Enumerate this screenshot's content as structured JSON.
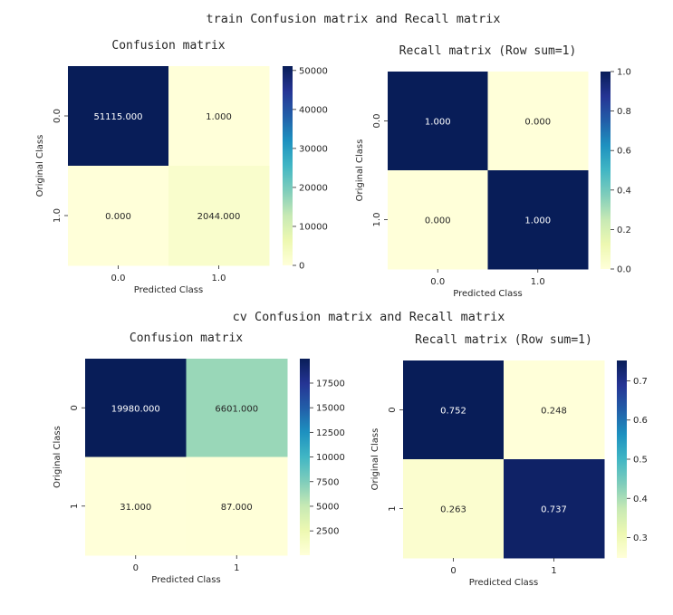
{
  "figure_titles": [
    "train Confusion matrix and Recall matrix",
    "cv Confusion matrix and Recall matrix"
  ],
  "chart_data": [
    {
      "type": "heatmap",
      "group": "train",
      "title": "Confusion matrix",
      "xlabel": "Predicted Class",
      "ylabel": "Original Class",
      "x_ticklabels": [
        "0.0",
        "1.0"
      ],
      "y_ticklabels": [
        "0.0",
        "1.0"
      ],
      "values": [
        [
          51115.0,
          1.0
        ],
        [
          0.0,
          2044.0
        ]
      ],
      "annotations": [
        [
          "51115.000",
          "1.000"
        ],
        [
          "0.000",
          "2044.000"
        ]
      ],
      "colormap": "YlGnBu",
      "colorbar": {
        "range": [
          0,
          51115
        ],
        "ticks": [
          0,
          10000,
          20000,
          30000,
          40000,
          50000
        ],
        "ticklabels": [
          "0",
          "10000",
          "20000",
          "30000",
          "40000",
          "50000"
        ]
      }
    },
    {
      "type": "heatmap",
      "group": "train",
      "title": "Recall matrix (Row sum=1)",
      "xlabel": "Predicted Class",
      "ylabel": "Original Class",
      "x_ticklabels": [
        "0.0",
        "1.0"
      ],
      "y_ticklabels": [
        "0.0",
        "1.0"
      ],
      "values": [
        [
          1.0,
          0.0
        ],
        [
          0.0,
          1.0
        ]
      ],
      "annotations": [
        [
          "1.000",
          "0.000"
        ],
        [
          "0.000",
          "1.000"
        ]
      ],
      "colormap": "YlGnBu",
      "colorbar": {
        "range": [
          0,
          1
        ],
        "ticks": [
          0,
          0.2,
          0.4,
          0.6,
          0.8,
          1.0
        ],
        "ticklabels": [
          "0.0",
          "0.2",
          "0.4",
          "0.6",
          "0.8",
          "1.0"
        ]
      }
    },
    {
      "type": "heatmap",
      "group": "cv",
      "title": "Confusion matrix",
      "xlabel": "Predicted Class",
      "ylabel": "Original Class",
      "x_ticklabels": [
        "0",
        "1"
      ],
      "y_ticklabels": [
        "0",
        "1"
      ],
      "values": [
        [
          19980.0,
          6601.0
        ],
        [
          31.0,
          87.0
        ]
      ],
      "annotations": [
        [
          "19980.000",
          "6601.000"
        ],
        [
          "31.000",
          "87.000"
        ]
      ],
      "colormap": "YlGnBu",
      "colorbar": {
        "range": [
          31,
          19980
        ],
        "ticks": [
          2500,
          5000,
          7500,
          10000,
          12500,
          15000,
          17500
        ],
        "ticklabels": [
          "2500",
          "5000",
          "7500",
          "10000",
          "12500",
          "15000",
          "17500"
        ]
      }
    },
    {
      "type": "heatmap",
      "group": "cv",
      "title": "Recall matrix (Row sum=1)",
      "xlabel": "Predicted Class",
      "ylabel": "Original Class",
      "x_ticklabels": [
        "0",
        "1"
      ],
      "y_ticklabels": [
        "0",
        "1"
      ],
      "values": [
        [
          0.752,
          0.248
        ],
        [
          0.263,
          0.737
        ]
      ],
      "annotations": [
        [
          "0.752",
          "0.248"
        ],
        [
          "0.263",
          "0.737"
        ]
      ],
      "colormap": "YlGnBu",
      "colorbar": {
        "range": [
          0.248,
          0.752
        ],
        "ticks": [
          0.3,
          0.4,
          0.5,
          0.6,
          0.7
        ],
        "ticklabels": [
          "0.3",
          "0.4",
          "0.5",
          "0.6",
          "0.7"
        ]
      }
    }
  ]
}
